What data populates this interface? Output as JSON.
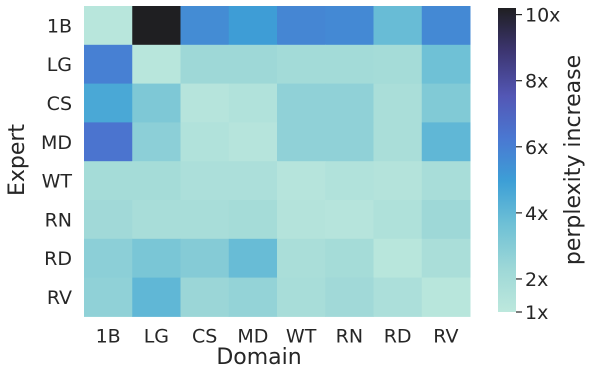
{
  "chart_data": {
    "type": "heatmap",
    "x_categories": [
      "1B",
      "LG",
      "CS",
      "MD",
      "WT",
      "RN",
      "RD",
      "RV"
    ],
    "y_categories": [
      "1B",
      "LG",
      "CS",
      "MD",
      "WT",
      "RN",
      "RD",
      "RV"
    ],
    "xlabel": "Domain",
    "ylabel": "Expert",
    "colorbar": {
      "label": "perplexity increase",
      "range": [
        1,
        10.2
      ],
      "ticks": [
        1,
        2,
        4,
        6,
        8,
        10
      ],
      "tick_labels": [
        "1x",
        "2x",
        "4x",
        "6x",
        "8x",
        "10x"
      ]
    },
    "values": [
      [
        1.2,
        10.2,
        5.6,
        5.0,
        5.8,
        5.7,
        3.8,
        5.7
      ],
      [
        6.0,
        1.2,
        2.3,
        2.3,
        2.1,
        2.1,
        2.0,
        3.6
      ],
      [
        4.6,
        3.2,
        1.3,
        1.5,
        2.7,
        2.7,
        1.8,
        3.1
      ],
      [
        6.4,
        2.8,
        1.5,
        1.3,
        2.7,
        2.7,
        1.8,
        4.0
      ],
      [
        2.0,
        2.0,
        1.7,
        1.7,
        1.3,
        1.5,
        1.4,
        1.9
      ],
      [
        2.2,
        1.9,
        1.9,
        2.0,
        1.4,
        1.3,
        1.6,
        2.3
      ],
      [
        2.8,
        3.3,
        3.0,
        3.8,
        1.8,
        2.0,
        1.2,
        1.8
      ],
      [
        2.7,
        4.0,
        2.4,
        2.6,
        1.9,
        2.2,
        1.7,
        1.2
      ]
    ],
    "colormap": [
      "#bde8dd",
      "#9ed8d7",
      "#6ec0d6",
      "#3d9fd6",
      "#4a78d2",
      "#5357b5",
      "#3c3570",
      "#1f1f22"
    ]
  }
}
